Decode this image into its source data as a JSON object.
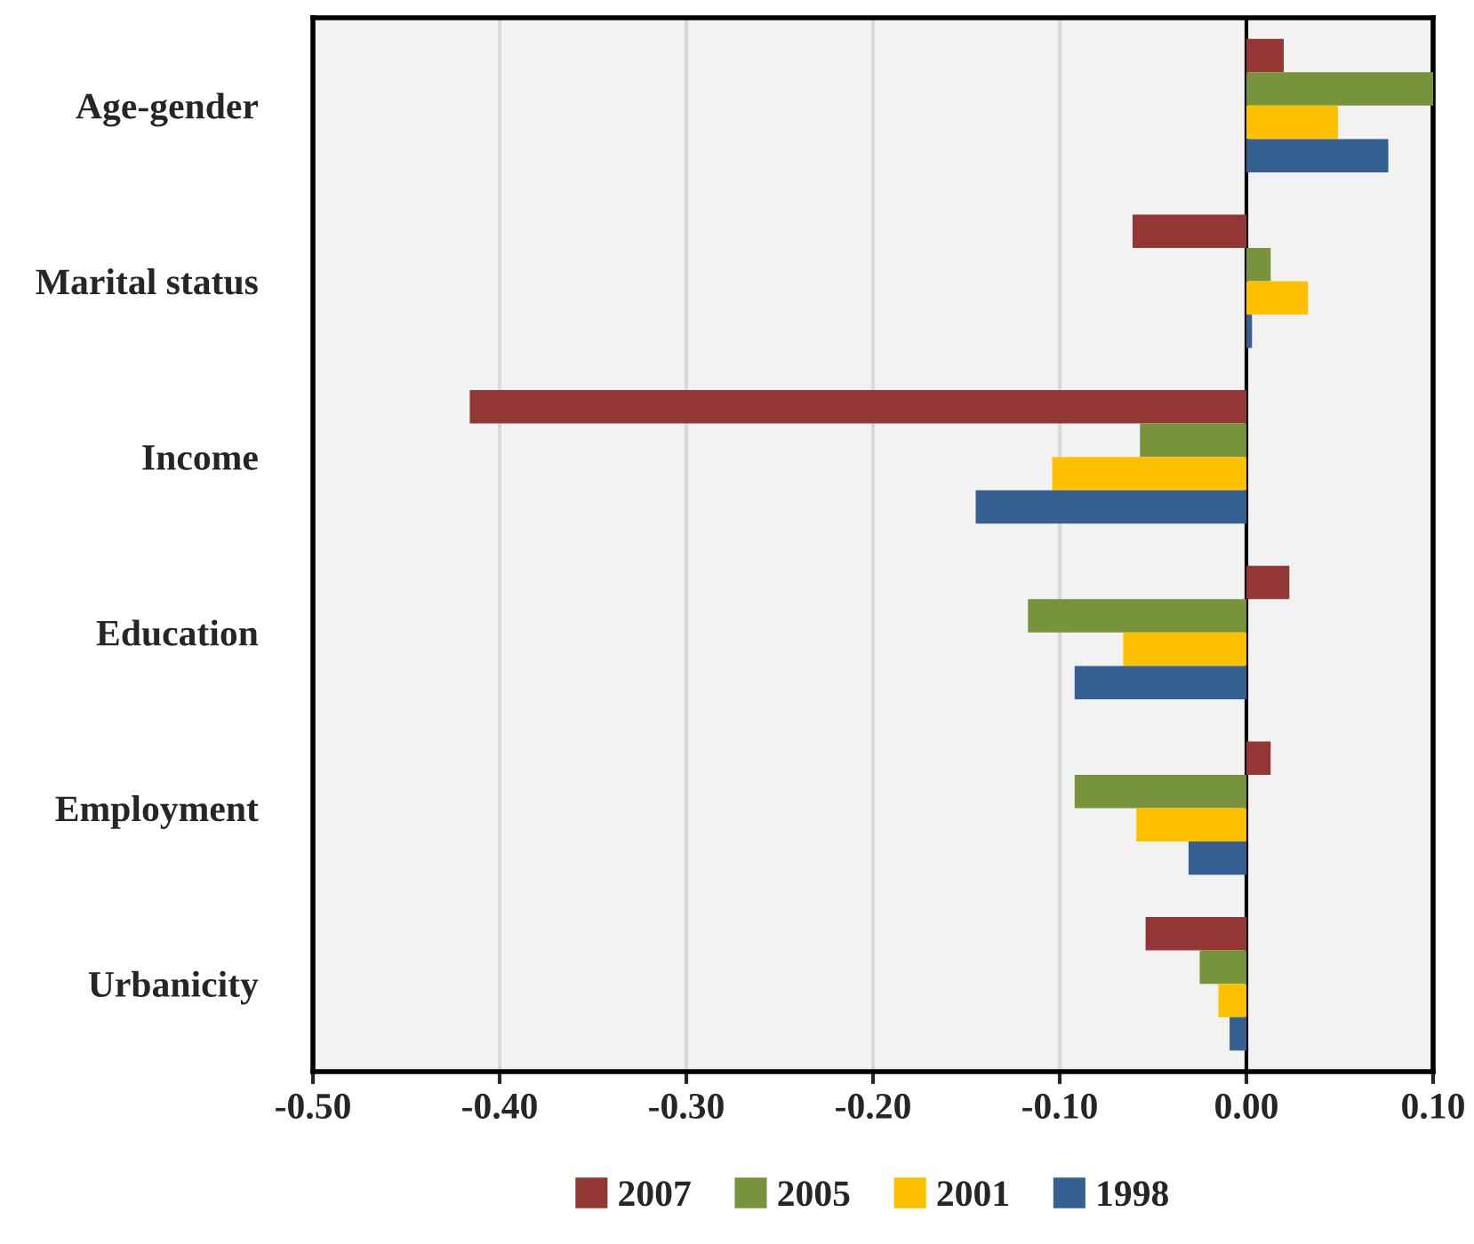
{
  "chart_data": {
    "type": "bar",
    "orientation": "horizontal",
    "categories": [
      "Age-gender",
      "Marital status",
      "Income",
      "Education",
      "Employment",
      "Urbanicity"
    ],
    "series": [
      {
        "name": "2007",
        "color": "#943634",
        "values": [
          0.02,
          -0.061,
          -0.416,
          0.023,
          0.013,
          -0.054
        ]
      },
      {
        "name": "2005",
        "color": "#77933c",
        "values": [
          0.1,
          0.013,
          -0.057,
          -0.117,
          -0.092,
          -0.025
        ]
      },
      {
        "name": "2001",
        "color": "#ffc000",
        "values": [
          0.049,
          0.033,
          -0.104,
          -0.066,
          -0.059,
          -0.015
        ]
      },
      {
        "name": "1998",
        "color": "#366092",
        "values": [
          0.076,
          0.003,
          -0.145,
          -0.092,
          -0.031,
          -0.009
        ]
      }
    ],
    "xlim": [
      -0.5,
      0.1
    ],
    "xticks": [
      {
        "value": -0.5,
        "label": "-0.50"
      },
      {
        "value": -0.4,
        "label": "-0.40"
      },
      {
        "value": -0.3,
        "label": "-0.30"
      },
      {
        "value": -0.2,
        "label": "-0.20"
      },
      {
        "value": -0.1,
        "label": "-0.10"
      },
      {
        "value": 0.0,
        "label": "0.00"
      },
      {
        "value": 0.1,
        "label": "0.10"
      }
    ],
    "ref_lines": [
      {
        "axis": "x",
        "value": 0,
        "color": "#000000"
      }
    ],
    "grid": "x",
    "legend": "bottom"
  }
}
